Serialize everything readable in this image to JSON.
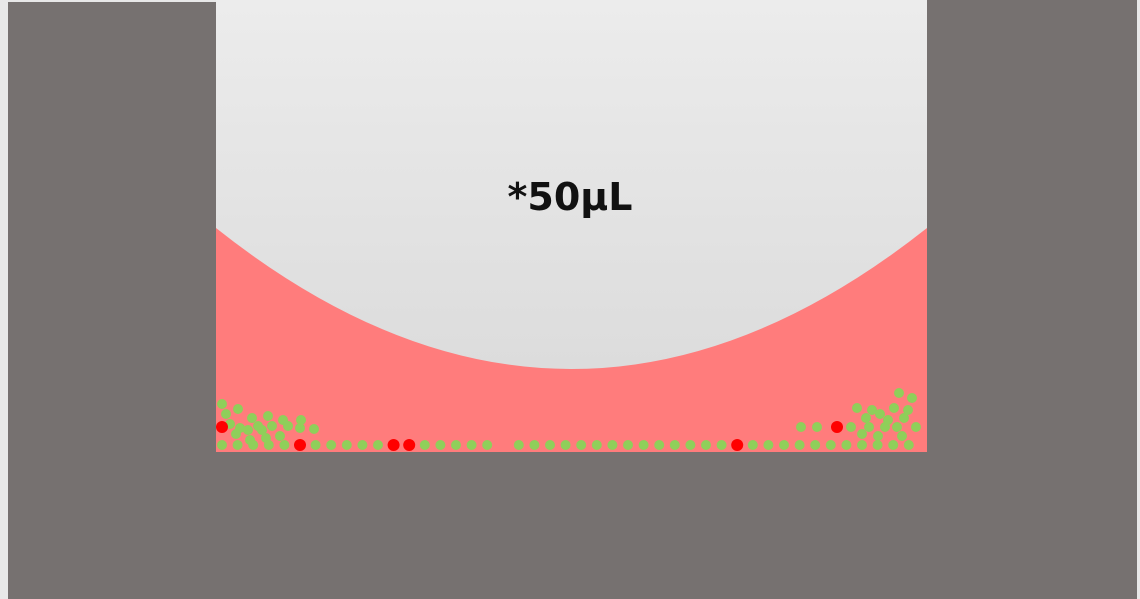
{
  "label": "*50µL",
  "colors": {
    "well_wall": "#767170",
    "page_background": "#e8e8e8",
    "meniscus_top": "#ececec",
    "meniscus_bottom": "#dcdcdc",
    "medium": "#ff7c7c",
    "cell_green": "#8fcf5a",
    "cell_red": "#ff0000"
  },
  "legend_items": []
}
